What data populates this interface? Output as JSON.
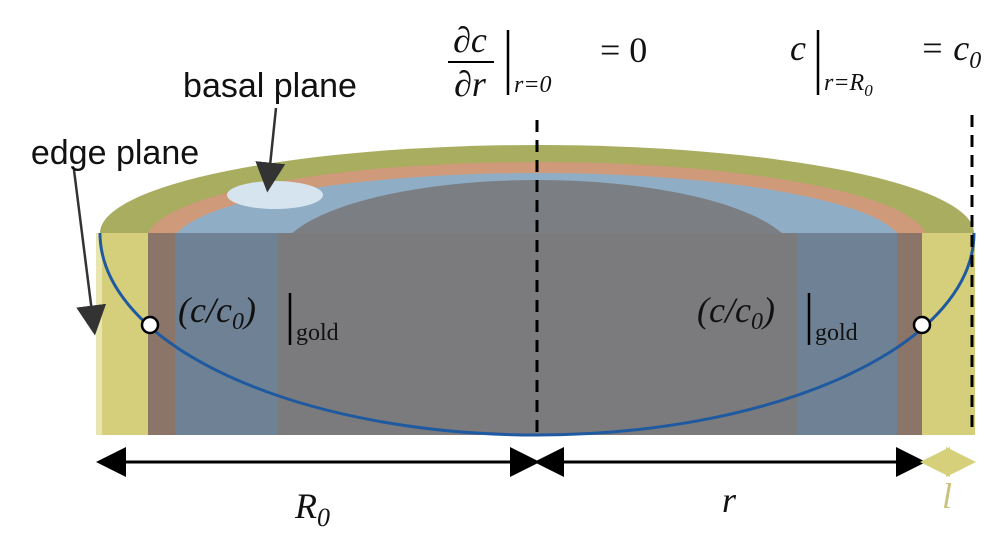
{
  "labels": {
    "basal_plane": "basal plane",
    "edge_plane": "edge plane"
  },
  "boundary_left": {
    "numerator": "∂c",
    "denominator": "∂r",
    "subscript": "r=0",
    "rhs": "= 0"
  },
  "boundary_right": {
    "lhs": "c",
    "subscript": "r=R",
    "subscript_index": "0",
    "rhs": "= c",
    "rhs_index": "0"
  },
  "gold_labels": [
    {
      "open": "(c/c",
      "index": "0",
      "close": ")",
      "sub": "gold"
    },
    {
      "open": "(c/c",
      "index": "0",
      "close": ")",
      "sub": "gold"
    }
  ],
  "dimensions": {
    "R": "R",
    "R_index": "0",
    "r": "r",
    "l": "l"
  }
}
